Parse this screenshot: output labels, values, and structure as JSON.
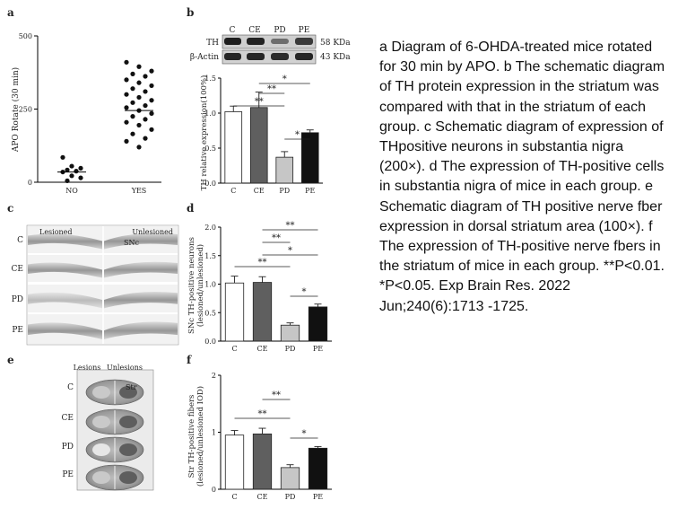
{
  "panels": {
    "a": {
      "letter": "a",
      "ylabel": "APO Rotate (30 min)",
      "yticks": [
        "0",
        "250",
        "500"
      ],
      "groups": [
        "NO",
        "YES"
      ]
    },
    "b": {
      "letter": "b",
      "blot_columns": [
        "C",
        "CE",
        "PD",
        "PE"
      ],
      "blot_rows": [
        {
          "name": "TH",
          "size": "58 KDa"
        },
        {
          "name": "β-Actin",
          "size": "43 KDa"
        }
      ],
      "ylabel": "TH relative expression(100%)",
      "yticks": [
        "0.0",
        "0.5",
        "1.0",
        "1.5"
      ],
      "sig": [
        "*",
        "**",
        "**",
        "*"
      ]
    },
    "c": {
      "letter": "c",
      "left_header": "Lesioned",
      "right_header": "Unlesioned",
      "inset_label": "SNc",
      "rows": [
        "C",
        "CE",
        "PD",
        "PE"
      ]
    },
    "d": {
      "letter": "d",
      "ylabel_line1": "SNc TH-positive neurons",
      "ylabel_line2": "(lesioned/unlesioned)",
      "yticks": [
        "0.0",
        "0.5",
        "1.0",
        "1.5",
        "2.0"
      ],
      "sig": [
        "**",
        "**",
        "*",
        "**",
        "*"
      ]
    },
    "e": {
      "letter": "e",
      "left_header": "Lesions",
      "right_header": "Unlesions",
      "inset_label": "Str",
      "rows": [
        "C",
        "CE",
        "PD",
        "PE"
      ]
    },
    "f": {
      "letter": "f",
      "ylabel_line1": "Str TH-positive fibers",
      "ylabel_line2": "(lesioned/unlesioned IOD)",
      "yticks": [
        "0",
        "1",
        "2"
      ],
      "sig": [
        "**",
        "**",
        "*"
      ]
    }
  },
  "chart_data": [
    {
      "panel": "a",
      "type": "scatter",
      "ylabel": "APO Rotate (30 min)",
      "ylim": [
        0,
        500
      ],
      "categories": [
        "NO",
        "YES"
      ],
      "points": {
        "NO": [
          85,
          55,
          48,
          42,
          38,
          35,
          22,
          15,
          5
        ],
        "YES": [
          410,
          395,
          380,
          370,
          362,
          350,
          340,
          330,
          320,
          310,
          300,
          290,
          280,
          272,
          262,
          255,
          245,
          235,
          225,
          215,
          205,
          195,
          180,
          165,
          150,
          140,
          120
        ]
      },
      "means": {
        "NO": 35,
        "YES": 245
      }
    },
    {
      "panel": "b",
      "type": "bar",
      "ylabel": "TH relative expression(100%)",
      "ylim": [
        0,
        1.5
      ],
      "categories": [
        "C",
        "CE",
        "PD",
        "PE"
      ],
      "values": [
        1.02,
        1.08,
        0.37,
        0.72
      ],
      "errors": [
        0.08,
        0.22,
        0.08,
        0.04
      ]
    },
    {
      "panel": "d",
      "type": "bar",
      "ylabel": "SNc TH-positive neurons (lesioned/unlesioned)",
      "ylim": [
        0,
        2.0
      ],
      "categories": [
        "C",
        "CE",
        "PD",
        "PE"
      ],
      "values": [
        1.02,
        1.03,
        0.28,
        0.6
      ],
      "errors": [
        0.12,
        0.1,
        0.04,
        0.05
      ]
    },
    {
      "panel": "f",
      "type": "bar",
      "ylabel": "Str TH-positive fibers (lesioned/unlesioned IOD)",
      "ylim": [
        0,
        2
      ],
      "categories": [
        "C",
        "CE",
        "PD",
        "PE"
      ],
      "values": [
        0.95,
        0.97,
        0.38,
        0.72
      ],
      "errors": [
        0.08,
        0.1,
        0.05,
        0.03
      ]
    }
  ],
  "caption": "a Diagram of 6-OHDA-treated mice rotated for 30 min by APO. b The schematic diagram of TH protein expression in the striatum was compared with that in the striatum of each group. c Schematic diagram of expression of THpositive neurons in substantia nigra (200×). d The expression of TH-positive cells in substantia nigra of mice in each group. e Schematic diagram of TH positive nerve fber expression in dorsal striatum area (100×). f The expression of TH-positive nerve fbers in the striatum of mice in each group. **P<0.01. *P<0.05. Exp Brain Res. 2022 Jun;240(6):1713 -1725."
}
